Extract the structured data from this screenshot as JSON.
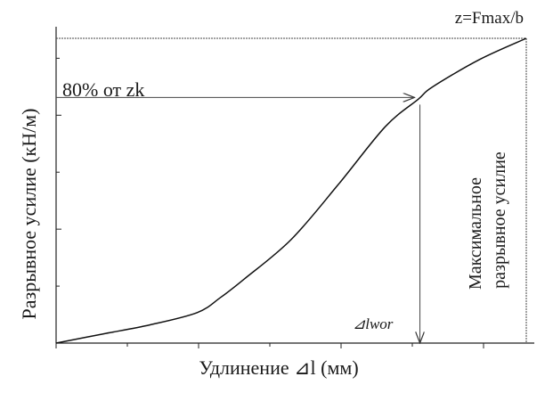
{
  "chart_data": {
    "type": "line",
    "xlabel": "Удлинение ⊿l (мм)",
    "ylabel": "Разрывное усилие (кН/м)",
    "xlim": [
      0,
      1
    ],
    "ylim": [
      0,
      1
    ],
    "series": [
      {
        "x": [
          0,
          0.1,
          0.2,
          0.3,
          0.35,
          0.4,
          0.5,
          0.6,
          0.7,
          0.77,
          0.8,
          0.9,
          1.0
        ],
        "y": [
          0,
          0.03,
          0.06,
          0.1,
          0.15,
          0.21,
          0.34,
          0.52,
          0.71,
          0.8,
          0.84,
          0.93,
          1.0
        ]
      }
    ],
    "annotations": {
      "max_label": "z=Fmax/b",
      "threshold_label": "80% от zk",
      "elongation_label": "⊿lwor",
      "vertical_label_line1": "Максимальное",
      "vertical_label_line2": "разрывное усилие"
    },
    "threshold": {
      "y": 0.8,
      "x": 0.77
    }
  }
}
